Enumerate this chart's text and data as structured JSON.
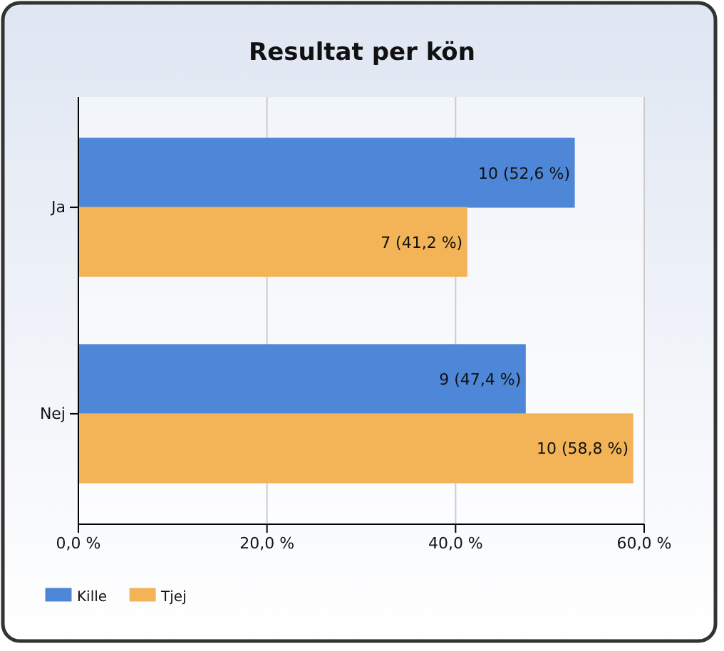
{
  "chart_data": {
    "type": "bar",
    "orientation": "horizontal",
    "title": "Resultat per kön",
    "categories": [
      "Ja",
      "Nej"
    ],
    "series": [
      {
        "name": "Kille",
        "color": "#4f87d8",
        "values": [
          52.6,
          47.4
        ],
        "value_labels": [
          "10 (52,6 %)",
          "9 (47,4 %)"
        ]
      },
      {
        "name": "Tjej",
        "color": "#f2b457",
        "values": [
          41.2,
          58.8
        ],
        "value_labels": [
          "7 (41,2 %)",
          "10 (58,8 %)"
        ]
      }
    ],
    "xlim": [
      0,
      60
    ],
    "xticks": [
      {
        "value": 0,
        "label": "0,0 %"
      },
      {
        "value": 20,
        "label": "20,0 %"
      },
      {
        "value": 40,
        "label": "40,0 %"
      },
      {
        "value": 60,
        "label": "60,0 %"
      }
    ],
    "grid": "x",
    "legend": "bottom left"
  }
}
